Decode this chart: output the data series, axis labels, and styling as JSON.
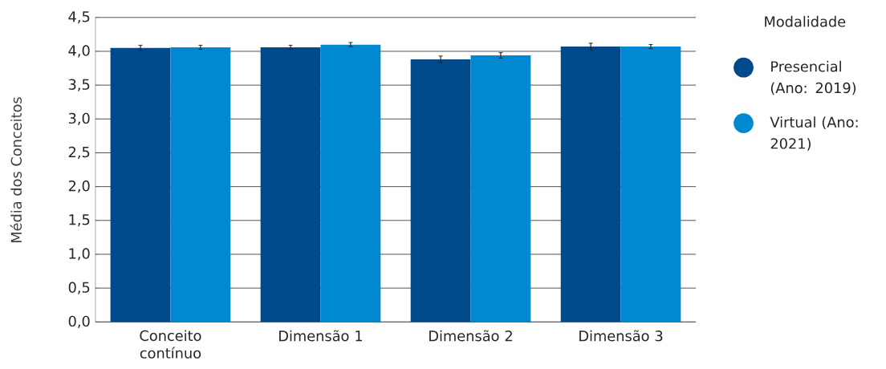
{
  "chart_data": {
    "type": "bar",
    "ylabel": "Média dos Conceitos",
    "legend_title": "Modalidade",
    "categories": [
      "Conceito contínuo",
      "Dimensão 1",
      "Dimensão 2",
      "Dimensão 3"
    ],
    "series": [
      {
        "name": "Presencial (Ano: 2019)",
        "color": "#004a8c",
        "values": [
          4.05,
          4.06,
          3.88,
          4.07
        ],
        "errors": [
          0.04,
          0.03,
          0.05,
          0.05
        ]
      },
      {
        "name": "Virtual (Ano: 2021)",
        "color": "#0088d1",
        "values": [
          4.06,
          4.1,
          3.94,
          4.07
        ],
        "errors": [
          0.03,
          0.03,
          0.04,
          0.03
        ]
      }
    ],
    "ylim": [
      0,
      4.5
    ],
    "yticks": [
      {
        "value": 0,
        "label": "0,0"
      },
      {
        "value": 0.5,
        "label": "0,5"
      },
      {
        "value": 1,
        "label": "1,0"
      },
      {
        "value": 1.5,
        "label": "1,5"
      },
      {
        "value": 2,
        "label": "2,0"
      },
      {
        "value": 2.5,
        "label": "2,5"
      },
      {
        "value": 3,
        "label": "3,0"
      },
      {
        "value": 3.5,
        "label": "3,5"
      },
      {
        "value": 4,
        "label": "4,0"
      },
      {
        "value": 4.5,
        "label": "4,5"
      }
    ],
    "grid": "y",
    "legend": "right"
  }
}
